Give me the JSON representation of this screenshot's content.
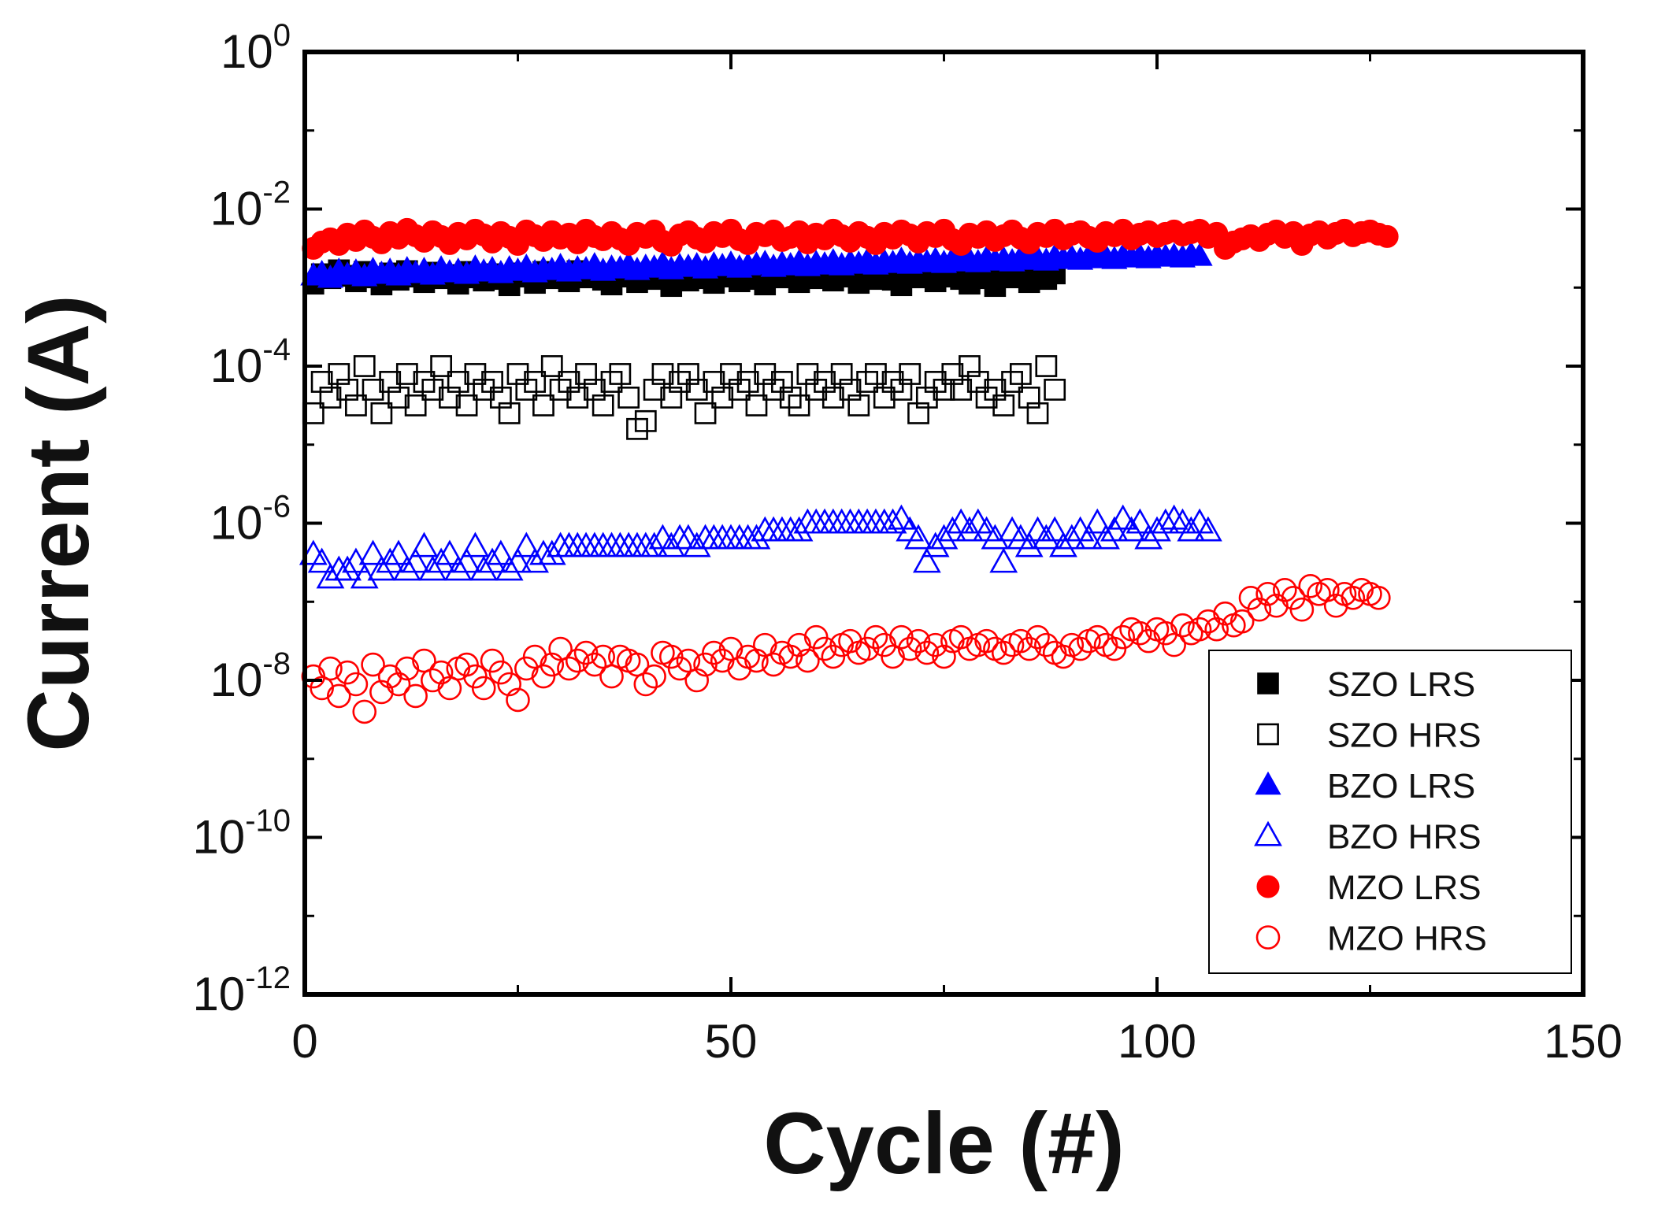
{
  "chart_data": {
    "type": "scatter",
    "title": "",
    "xlabel": "Cycle (#)",
    "ylabel": "Current (A)",
    "xlim": [
      0,
      150
    ],
    "ylim_log10": [
      -12,
      0
    ],
    "x_ticks": [
      0,
      50,
      100,
      150
    ],
    "y_ticks": [
      {
        "base": "10",
        "exp": "0",
        "value": 0
      },
      {
        "base": "10",
        "exp": "-2",
        "value": -2
      },
      {
        "base": "10",
        "exp": "-4",
        "value": -4
      },
      {
        "base": "10",
        "exp": "-6",
        "value": -6
      },
      {
        "base": "10",
        "exp": "-8",
        "value": -8
      },
      {
        "base": "10",
        "exp": "-10",
        "value": -10
      },
      {
        "base": "10",
        "exp": "-12",
        "value": -12
      }
    ],
    "legend_position": "bottom-right",
    "series": [
      {
        "name": "SZO LRS",
        "marker": "square",
        "filled": true,
        "color": "#000000",
        "x_start": 1,
        "count": 88,
        "log10_values": [
          -2.95,
          -2.83,
          -2.88,
          -2.78,
          -2.85,
          -2.92,
          -2.8,
          -2.87,
          -2.96,
          -2.82,
          -2.9,
          -2.79,
          -2.86,
          -2.93,
          -2.81,
          -2.88,
          -2.84,
          -2.95,
          -2.8,
          -2.87,
          -2.91,
          -2.83,
          -2.89,
          -2.97,
          -2.82,
          -2.86,
          -2.94,
          -2.8,
          -2.88,
          -2.85,
          -2.92,
          -2.79,
          -2.87,
          -2.83,
          -2.9,
          -2.96,
          -2.81,
          -2.86,
          -2.93,
          -2.84,
          -2.89,
          -2.8,
          -2.98,
          -2.85,
          -2.91,
          -2.82,
          -2.88,
          -2.94,
          -2.8,
          -2.86,
          -2.92,
          -2.83,
          -2.89,
          -2.96,
          -2.81,
          -2.87,
          -2.84,
          -2.93,
          -2.8,
          -2.88,
          -2.85,
          -2.91,
          -2.79,
          -2.86,
          -2.94,
          -2.82,
          -2.89,
          -2.83,
          -2.9,
          -2.97,
          -2.81,
          -2.87,
          -2.84,
          -2.92,
          -2.8,
          -2.86,
          -2.89,
          -2.95,
          -2.82,
          -2.88,
          -2.98,
          -2.83,
          -2.87,
          -2.81,
          -2.93,
          -2.85,
          -2.89,
          -2.82
        ]
      },
      {
        "name": "SZO HRS",
        "marker": "square",
        "filled": false,
        "color": "#000000",
        "x_start": 1,
        "count": 88,
        "log10_values": [
          -4.6,
          -4.2,
          -4.4,
          -4.1,
          -4.3,
          -4.5,
          -4.0,
          -4.3,
          -4.6,
          -4.2,
          -4.4,
          -4.1,
          -4.5,
          -4.2,
          -4.3,
          -4.0,
          -4.4,
          -4.2,
          -4.5,
          -4.1,
          -4.3,
          -4.2,
          -4.4,
          -4.6,
          -4.1,
          -4.3,
          -4.2,
          -4.5,
          -4.0,
          -4.3,
          -4.2,
          -4.4,
          -4.1,
          -4.3,
          -4.5,
          -4.2,
          -4.1,
          -4.4,
          -4.8,
          -4.7,
          -4.3,
          -4.1,
          -4.4,
          -4.2,
          -4.1,
          -4.3,
          -4.6,
          -4.2,
          -4.4,
          -4.1,
          -4.3,
          -4.2,
          -4.5,
          -4.1,
          -4.3,
          -4.2,
          -4.4,
          -4.5,
          -4.1,
          -4.3,
          -4.2,
          -4.4,
          -4.1,
          -4.3,
          -4.5,
          -4.2,
          -4.1,
          -4.4,
          -4.2,
          -4.3,
          -4.1,
          -4.6,
          -4.4,
          -4.2,
          -4.3,
          -4.1,
          -4.3,
          -4.0,
          -4.2,
          -4.4,
          -4.3,
          -4.5,
          -4.2,
          -4.1,
          -4.4,
          -4.6,
          -4.0,
          -4.3
        ]
      },
      {
        "name": "BZO LRS",
        "marker": "triangle",
        "filled": true,
        "color": "#0000ff",
        "x_start": 1,
        "count": 105,
        "log10_values": [
          -2.85,
          -2.82,
          -2.88,
          -2.79,
          -2.84,
          -2.8,
          -2.86,
          -2.78,
          -2.83,
          -2.79,
          -2.85,
          -2.77,
          -2.82,
          -2.78,
          -2.84,
          -2.76,
          -2.81,
          -2.79,
          -2.83,
          -2.75,
          -2.8,
          -2.77,
          -2.82,
          -2.76,
          -2.79,
          -2.74,
          -2.81,
          -2.77,
          -2.78,
          -2.73,
          -2.8,
          -2.76,
          -2.77,
          -2.72,
          -2.79,
          -2.75,
          -2.76,
          -2.71,
          -2.78,
          -2.74,
          -2.75,
          -2.7,
          -2.77,
          -2.73,
          -2.74,
          -2.72,
          -2.76,
          -2.71,
          -2.73,
          -2.7,
          -2.75,
          -2.72,
          -2.71,
          -2.69,
          -2.74,
          -2.7,
          -2.72,
          -2.68,
          -2.73,
          -2.69,
          -2.71,
          -2.67,
          -2.72,
          -2.68,
          -2.7,
          -2.66,
          -2.71,
          -2.67,
          -2.69,
          -2.65,
          -2.7,
          -2.66,
          -2.68,
          -2.65,
          -2.69,
          -2.64,
          -2.67,
          -2.65,
          -2.68,
          -2.63,
          -2.66,
          -2.64,
          -2.67,
          -2.62,
          -2.65,
          -2.63,
          -2.66,
          -2.61,
          -2.64,
          -2.62,
          -2.65,
          -2.6,
          -2.63,
          -2.61,
          -2.64,
          -2.6,
          -2.62,
          -2.6,
          -2.63,
          -2.59,
          -2.61,
          -2.6,
          -2.62,
          -2.58,
          -2.6
        ]
      },
      {
        "name": "BZO HRS",
        "marker": "triangle",
        "filled": false,
        "color": "#0000ff",
        "x_start": 1,
        "count": 106,
        "log10_values": [
          -6.4,
          -6.5,
          -6.7,
          -6.6,
          -6.6,
          -6.5,
          -6.7,
          -6.4,
          -6.6,
          -6.5,
          -6.4,
          -6.6,
          -6.5,
          -6.3,
          -6.6,
          -6.5,
          -6.4,
          -6.6,
          -6.5,
          -6.3,
          -6.6,
          -6.5,
          -6.4,
          -6.6,
          -6.5,
          -6.3,
          -6.5,
          -6.4,
          -6.4,
          -6.3,
          -6.3,
          -6.3,
          -6.3,
          -6.3,
          -6.3,
          -6.3,
          -6.3,
          -6.3,
          -6.3,
          -6.3,
          -6.3,
          -6.2,
          -6.3,
          -6.2,
          -6.2,
          -6.3,
          -6.2,
          -6.2,
          -6.2,
          -6.2,
          -6.2,
          -6.2,
          -6.2,
          -6.1,
          -6.1,
          -6.1,
          -6.1,
          -6.1,
          -6.0,
          -6.0,
          -6.0,
          -6.0,
          -6.0,
          -6.0,
          -6.0,
          -6.0,
          -6.0,
          -6.0,
          -6.0,
          -5.95,
          -6.1,
          -6.2,
          -6.5,
          -6.3,
          -6.2,
          -6.1,
          -6.0,
          -6.1,
          -6.0,
          -6.1,
          -6.2,
          -6.5,
          -6.1,
          -6.2,
          -6.3,
          -6.1,
          -6.2,
          -6.1,
          -6.3,
          -6.2,
          -6.1,
          -6.2,
          -6.0,
          -6.2,
          -6.1,
          -5.95,
          -6.1,
          -6.0,
          -6.2,
          -6.1,
          -6.0,
          -5.95,
          -6.0,
          -6.1,
          -6.0,
          -6.1
        ]
      },
      {
        "name": "MZO LRS",
        "marker": "circle",
        "filled": true,
        "color": "#ff0000",
        "x_start": 1,
        "count": 127,
        "log10_values": [
          -2.5,
          -2.42,
          -2.38,
          -2.45,
          -2.32,
          -2.4,
          -2.28,
          -2.36,
          -2.43,
          -2.3,
          -2.37,
          -2.26,
          -2.34,
          -2.41,
          -2.29,
          -2.35,
          -2.44,
          -2.31,
          -2.38,
          -2.27,
          -2.33,
          -2.42,
          -2.3,
          -2.36,
          -2.45,
          -2.28,
          -2.34,
          -2.4,
          -2.29,
          -2.37,
          -2.32,
          -2.43,
          -2.27,
          -2.35,
          -2.39,
          -2.3,
          -2.38,
          -2.45,
          -2.31,
          -2.36,
          -2.28,
          -2.41,
          -2.46,
          -2.33,
          -2.29,
          -2.37,
          -2.42,
          -2.3,
          -2.35,
          -2.27,
          -2.39,
          -2.44,
          -2.31,
          -2.34,
          -2.28,
          -2.4,
          -2.36,
          -2.29,
          -2.43,
          -2.32,
          -2.38,
          -2.27,
          -2.34,
          -2.41,
          -2.3,
          -2.36,
          -2.44,
          -2.31,
          -2.37,
          -2.28,
          -2.33,
          -2.42,
          -2.3,
          -2.35,
          -2.27,
          -2.39,
          -2.45,
          -2.32,
          -2.36,
          -2.29,
          -2.4,
          -2.34,
          -2.28,
          -2.37,
          -2.43,
          -2.31,
          -2.35,
          -2.27,
          -2.38,
          -2.32,
          -2.29,
          -2.36,
          -2.41,
          -2.3,
          -2.34,
          -2.27,
          -2.38,
          -2.32,
          -2.29,
          -2.35,
          -2.31,
          -2.28,
          -2.33,
          -2.3,
          -2.27,
          -2.36,
          -2.31,
          -2.5,
          -2.42,
          -2.38,
          -2.34,
          -2.4,
          -2.32,
          -2.28,
          -2.36,
          -2.3,
          -2.45,
          -2.33,
          -2.29,
          -2.37,
          -2.31,
          -2.27,
          -2.34,
          -2.3,
          -2.28,
          -2.32,
          -2.35
        ]
      },
      {
        "name": "MZO HRS",
        "marker": "circle",
        "filled": false,
        "color": "#ff0000",
        "x_start": 1,
        "count": 126,
        "log10_values": [
          -7.95,
          -8.1,
          -7.85,
          -8.2,
          -7.9,
          -8.05,
          -8.4,
          -7.8,
          -8.15,
          -7.95,
          -8.05,
          -7.85,
          -8.2,
          -7.75,
          -8.0,
          -7.9,
          -8.1,
          -7.85,
          -7.8,
          -7.95,
          -8.1,
          -7.75,
          -7.9,
          -8.05,
          -8.25,
          -7.85,
          -7.7,
          -7.95,
          -7.8,
          -7.6,
          -7.85,
          -7.75,
          -7.65,
          -7.8,
          -7.7,
          -7.95,
          -7.7,
          -7.75,
          -7.8,
          -8.05,
          -7.95,
          -7.65,
          -7.7,
          -7.85,
          -7.75,
          -8.0,
          -7.8,
          -7.65,
          -7.75,
          -7.6,
          -7.85,
          -7.7,
          -7.75,
          -7.55,
          -7.8,
          -7.65,
          -7.7,
          -7.55,
          -7.75,
          -7.45,
          -7.6,
          -7.7,
          -7.55,
          -7.5,
          -7.65,
          -7.6,
          -7.45,
          -7.55,
          -7.7,
          -7.45,
          -7.6,
          -7.5,
          -7.65,
          -7.55,
          -7.7,
          -7.5,
          -7.45,
          -7.6,
          -7.55,
          -7.5,
          -7.6,
          -7.65,
          -7.55,
          -7.5,
          -7.6,
          -7.45,
          -7.55,
          -7.65,
          -7.7,
          -7.55,
          -7.6,
          -7.5,
          -7.45,
          -7.55,
          -7.6,
          -7.45,
          -7.35,
          -7.4,
          -7.5,
          -7.35,
          -7.4,
          -7.55,
          -7.3,
          -7.4,
          -7.35,
          -7.25,
          -7.35,
          -7.15,
          -7.3,
          -7.25,
          -6.95,
          -7.1,
          -6.9,
          -7.05,
          -6.85,
          -6.95,
          -7.1,
          -6.8,
          -6.9,
          -6.85,
          -7.05,
          -6.9,
          -6.95,
          -6.85,
          -6.9,
          -6.95
        ]
      }
    ]
  }
}
